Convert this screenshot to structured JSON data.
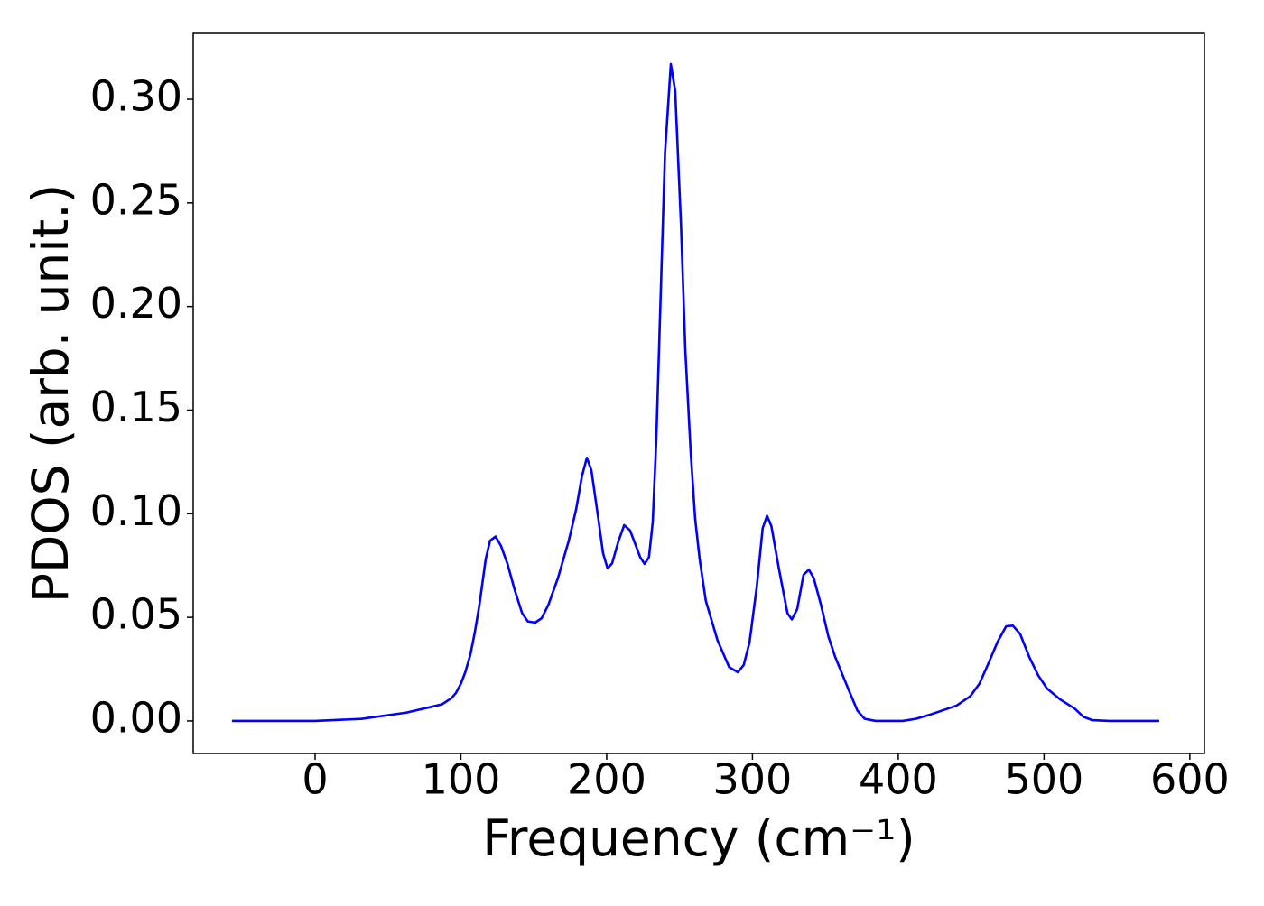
{
  "chart_data": {
    "type": "line",
    "xlabel": "Frequency (cm⁻¹)",
    "ylabel": "PDOS (arb. unit.)",
    "xlim": [
      -83.6,
      610
    ],
    "ylim": [
      -0.0157,
      0.3318
    ],
    "xticks": [
      0,
      100,
      200,
      300,
      400,
      500,
      600
    ],
    "yticks": [
      {
        "value": 0,
        "label": "0.00"
      },
      {
        "value": 0.05,
        "label": "0.05"
      },
      {
        "value": 0.1,
        "label": "0.10"
      },
      {
        "value": 0.15,
        "label": "0.15"
      },
      {
        "value": 0.2,
        "label": "0.20"
      },
      {
        "value": 0.25,
        "label": "0.25"
      },
      {
        "value": 0.3,
        "label": "0.30"
      }
    ],
    "x": [
      -57,
      0,
      31.6,
      62.5,
      87,
      93.5,
      96.6,
      100,
      103,
      106.5,
      109.6,
      112.7,
      117,
      120,
      123.8,
      127.5,
      132,
      137,
      142,
      146,
      151,
      155.4,
      160,
      166.6,
      174,
      179,
      183,
      186.4,
      189.5,
      193.8,
      197.5,
      200.6,
      203.7,
      208,
      212,
      216,
      219.8,
      223,
      226,
      229,
      231.6,
      234,
      240,
      244,
      247,
      251,
      254,
      257.6,
      260.7,
      263.8,
      268,
      276,
      284,
      290,
      294,
      298,
      303,
      307,
      310,
      313,
      318,
      321,
      324,
      327,
      330.7,
      335,
      338.7,
      342,
      347,
      352,
      356.7,
      366,
      372,
      377,
      384.5,
      403,
      412,
      421.7,
      440,
      449.5,
      455.7,
      462,
      468,
      474,
      478.6,
      483.6,
      489.8,
      496,
      502,
      511,
      521,
      527,
      533,
      545,
      579
    ],
    "series": [
      {
        "name": "PDOS",
        "color": "#0000ff",
        "values": [
          0,
          0,
          0.001,
          0.004,
          0.008,
          0.011,
          0.0135,
          0.018,
          0.0235,
          0.032,
          0.043,
          0.056,
          0.078,
          0.087,
          0.089,
          0.0845,
          0.0757,
          0.063,
          0.052,
          0.048,
          0.0475,
          0.0496,
          0.056,
          0.069,
          0.087,
          0.102,
          0.118,
          0.127,
          0.121,
          0.1,
          0.081,
          0.0736,
          0.076,
          0.0866,
          0.0945,
          0.092,
          0.085,
          0.079,
          0.0758,
          0.079,
          0.096,
          0.135,
          0.274,
          0.317,
          0.304,
          0.239,
          0.178,
          0.13,
          0.0975,
          0.078,
          0.058,
          0.039,
          0.026,
          0.0235,
          0.027,
          0.038,
          0.065,
          0.093,
          0.099,
          0.094,
          0.074,
          0.063,
          0.052,
          0.049,
          0.054,
          0.0705,
          0.073,
          0.069,
          0.056,
          0.041,
          0.031,
          0.015,
          0.005,
          0.001,
          0,
          0,
          0.001,
          0.003,
          0.0074,
          0.012,
          0.018,
          0.028,
          0.038,
          0.0457,
          0.046,
          0.042,
          0.031,
          0.022,
          0.0157,
          0.0104,
          0.006,
          0.002,
          0.0004,
          0,
          0
        ]
      }
    ]
  }
}
